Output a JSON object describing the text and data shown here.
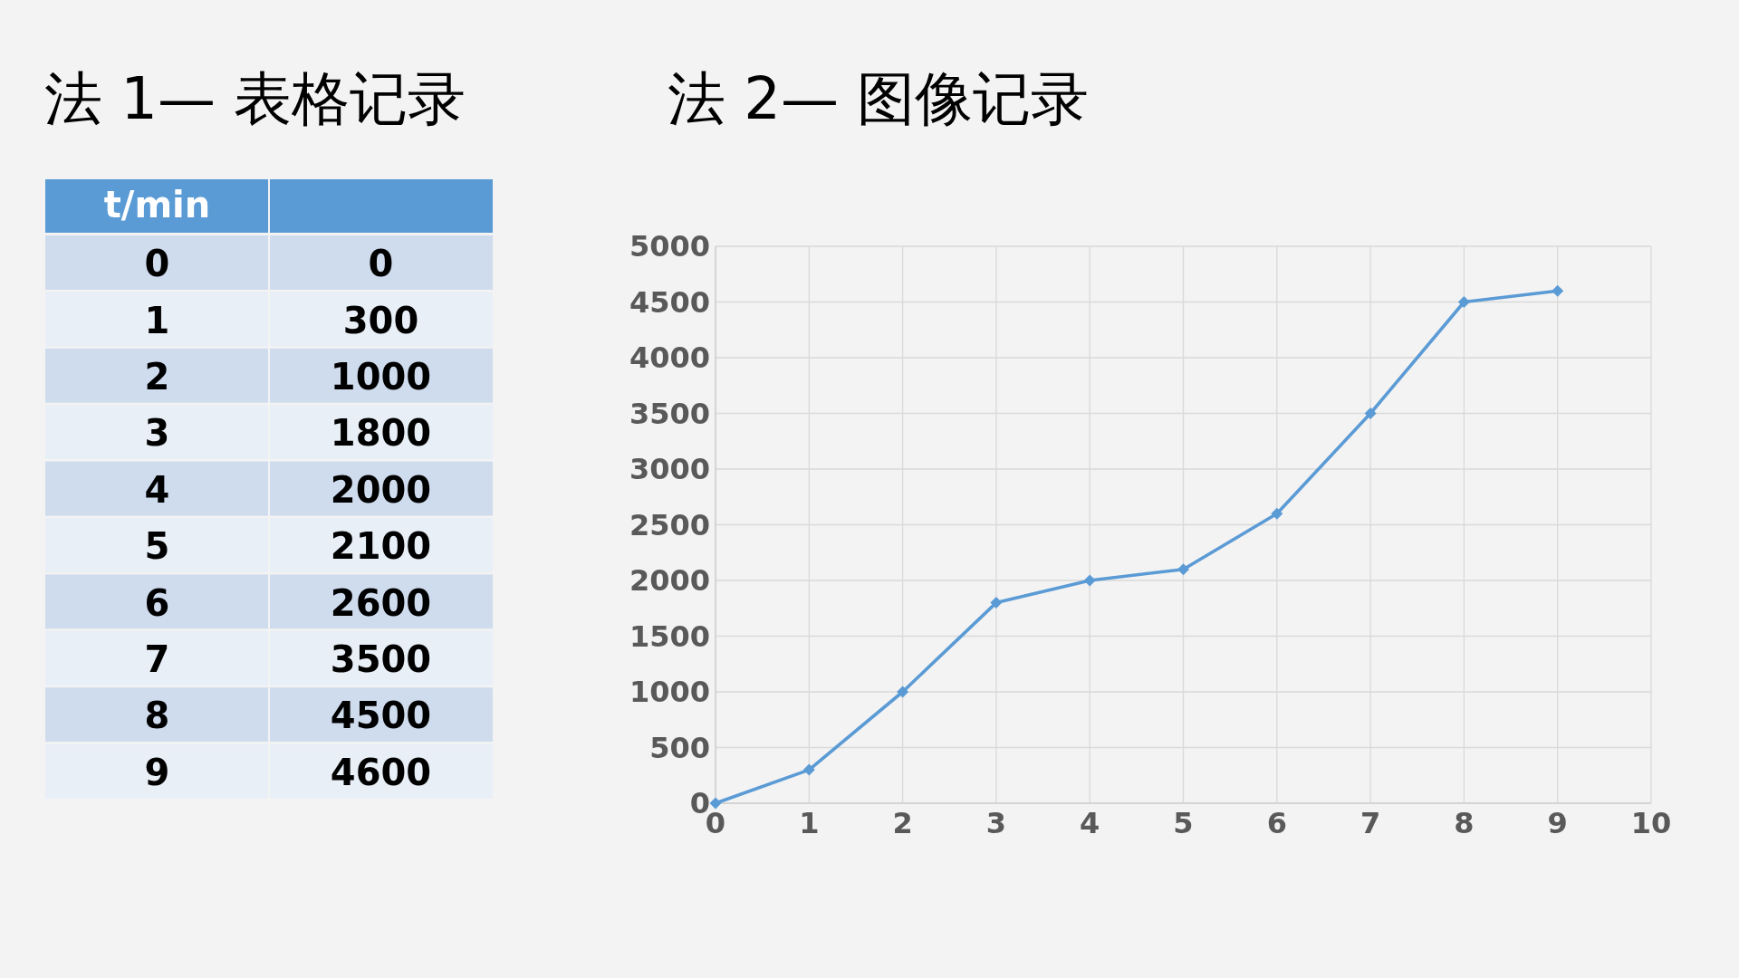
{
  "chart_data": {
    "type": "line",
    "title": "法 2— 图像记录",
    "annotations": [
      "法 1— 表格记录",
      "t/min",
      "0",
      "0",
      "1",
      "300",
      "2",
      "1000",
      "3",
      "1800",
      "4",
      "2000",
      "5",
      "2100",
      "6",
      "2600",
      "7",
      "3500",
      "8",
      "4500",
      "9",
      "4600"
    ],
    "x": [
      0,
      1,
      2,
      3,
      4,
      5,
      6,
      7,
      8,
      9
    ],
    "series": [
      {
        "color": "#5b9bd5",
        "values": [
          0,
          300,
          1000,
          1800,
          2000,
          2100,
          2600,
          3500,
          4500,
          4600
        ]
      }
    ],
    "xlim": [
      0,
      10
    ],
    "xticks": [
      0,
      1,
      2,
      3,
      4,
      5,
      6,
      7,
      8,
      9,
      10
    ],
    "ylim": [
      0,
      5000
    ],
    "yticks": [
      0,
      500,
      1000,
      1500,
      2000,
      2500,
      3000,
      3500,
      4000,
      4500,
      5000
    ],
    "grid": true,
    "marker": "diamond",
    "line_style": "solid"
  }
}
